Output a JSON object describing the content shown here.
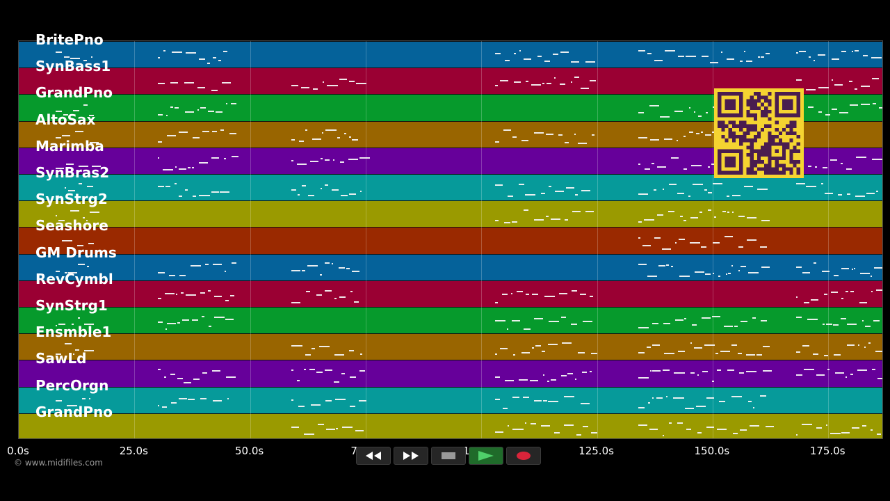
{
  "app": {
    "copyright": "© www.midifiles.com"
  },
  "timeline": {
    "ticks": [
      {
        "label": "0.0s",
        "seconds": 0
      },
      {
        "label": "25.0s",
        "seconds": 25
      },
      {
        "label": "50.0s",
        "seconds": 50
      },
      {
        "label": "75.0s",
        "seconds": 75
      },
      {
        "label": "100.0s",
        "seconds": 100
      },
      {
        "label": "125.0s",
        "seconds": 125
      },
      {
        "label": "150.0s",
        "seconds": 150
      },
      {
        "label": "175.0s",
        "seconds": 175
      }
    ],
    "end_seconds": 187
  },
  "tracks": [
    {
      "name": "BritePno",
      "color": "#05629a"
    },
    {
      "name": "SynBass1",
      "color": "#9a0033"
    },
    {
      "name": "GrandPno",
      "color": "#069a2c"
    },
    {
      "name": "AltoSax",
      "color": "#996500"
    },
    {
      "name": "Marimba",
      "color": "#66009a"
    },
    {
      "name": "SynBras2",
      "color": "#069a9a"
    },
    {
      "name": "SynStrg2",
      "color": "#9a9a00"
    },
    {
      "name": "Seashore",
      "color": "#9a2900"
    },
    {
      "name": "GM Drums",
      "color": "#05629a"
    },
    {
      "name": "RevCymbl",
      "color": "#9a0033"
    },
    {
      "name": "SynStrg1",
      "color": "#069a2c"
    },
    {
      "name": "Ensmble1",
      "color": "#996500"
    },
    {
      "name": "SawLd",
      "color": "#66009a"
    },
    {
      "name": "PercOrgn",
      "color": "#069a9a"
    },
    {
      "name": "GrandPno",
      "color": "#9a9a00"
    }
  ],
  "transport": {
    "buttons": [
      {
        "id": "rewind",
        "icon": "rewind-icon"
      },
      {
        "id": "fast-forward",
        "icon": "fast-forward-icon"
      },
      {
        "id": "stop",
        "icon": "stop-icon"
      },
      {
        "id": "play",
        "icon": "play-icon",
        "active": true
      },
      {
        "id": "record",
        "icon": "record-icon"
      }
    ]
  },
  "overlay": {
    "qr_icon": "qr-code-icon",
    "qr_color": "#f5d431"
  }
}
